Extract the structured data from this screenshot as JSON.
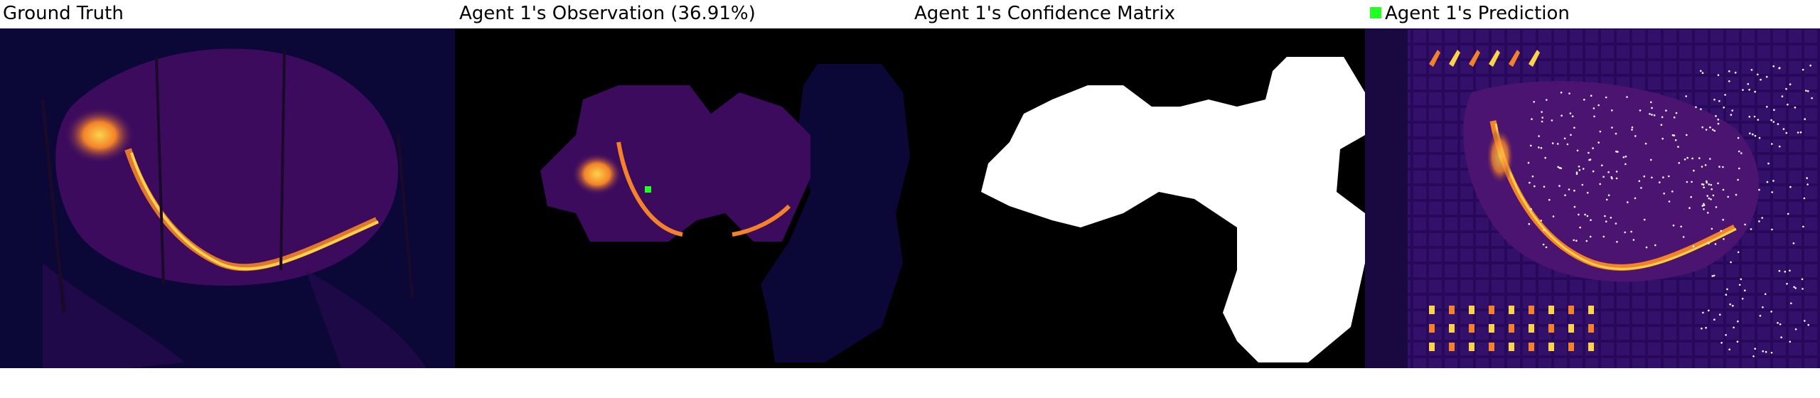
{
  "panels": [
    {
      "title": "Ground Truth"
    },
    {
      "title": "Agent 1's Observation (36.91%)"
    },
    {
      "title": "Agent 1's Confidence Matrix"
    },
    {
      "title": "Agent 1's Prediction"
    }
  ],
  "colors": {
    "background_dark": "#0b0838",
    "burn_purple": "#3c0b5e",
    "fire_orange": "#f3822a",
    "fire_yellow": "#fcd34a",
    "mask_white": "#ffffff",
    "mask_black": "#000000",
    "agent_marker": "#22ff22",
    "prediction_dots": "#ffffff"
  },
  "legend": {
    "icon": "green-square-icon",
    "label": "Agent 1's Prediction"
  }
}
